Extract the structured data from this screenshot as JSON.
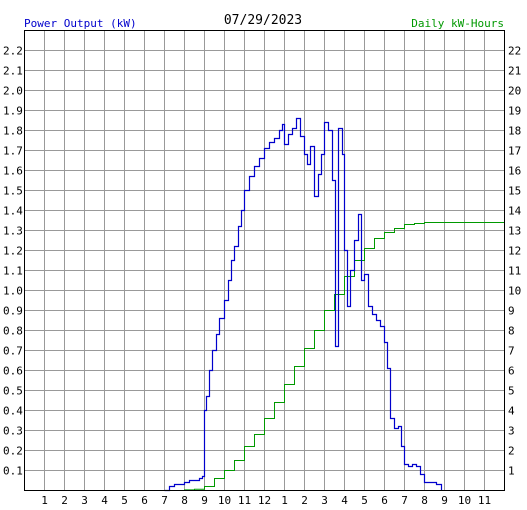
{
  "chart_data": {
    "type": "line",
    "date_label": "07/29/2023",
    "left_axis_label": "Power Output (kW)",
    "right_axis_label": "Daily kW-Hours",
    "x_ticks": [
      "1",
      "2",
      "3",
      "4",
      "5",
      "6",
      "7",
      "8",
      "9",
      "10",
      "11",
      "12",
      "1",
      "2",
      "3",
      "4",
      "5",
      "6",
      "7",
      "8",
      "9",
      "10",
      "11"
    ],
    "left_ticks": [
      "0.1",
      "0.2",
      "0.3",
      "0.4",
      "0.5",
      "0.6",
      "0.7",
      "0.8",
      "0.9",
      "1.0",
      "1.1",
      "1.2",
      "1.3",
      "1.4",
      "1.5",
      "1.6",
      "1.7",
      "1.8",
      "1.9",
      "2.0",
      "2.1",
      "2.2"
    ],
    "right_ticks": [
      "1",
      "2",
      "3",
      "4",
      "5",
      "6",
      "7",
      "8",
      "9",
      "10",
      "11",
      "12",
      "13",
      "14",
      "15",
      "16",
      "17",
      "18",
      "19",
      "20",
      "21",
      "22"
    ],
    "x_range_hours": [
      0,
      24
    ],
    "left_range_kw": [
      0,
      2.3
    ],
    "right_range_kwh": [
      0,
      23
    ],
    "grid": true,
    "colors": {
      "power": "#0000cc",
      "energy": "#009900",
      "left_label": "#0000cc",
      "right_label": "#009900",
      "grid": "#999999",
      "frame": "#000000"
    },
    "series": [
      {
        "name": "Power Output (kW)",
        "points": [
          [
            7.0,
            0.0
          ],
          [
            7.25,
            0.02
          ],
          [
            7.5,
            0.03
          ],
          [
            7.75,
            0.03
          ],
          [
            8.0,
            0.04
          ],
          [
            8.25,
            0.05
          ],
          [
            8.5,
            0.05
          ],
          [
            8.75,
            0.06
          ],
          [
            8.9,
            0.07
          ],
          [
            9.0,
            0.4
          ],
          [
            9.1,
            0.47
          ],
          [
            9.25,
            0.6
          ],
          [
            9.4,
            0.7
          ],
          [
            9.6,
            0.78
          ],
          [
            9.75,
            0.86
          ],
          [
            10.0,
            0.95
          ],
          [
            10.2,
            1.05
          ],
          [
            10.35,
            1.15
          ],
          [
            10.5,
            1.22
          ],
          [
            10.7,
            1.32
          ],
          [
            10.85,
            1.4
          ],
          [
            11.0,
            1.5
          ],
          [
            11.25,
            1.57
          ],
          [
            11.5,
            1.62
          ],
          [
            11.75,
            1.66
          ],
          [
            12.0,
            1.71
          ],
          [
            12.25,
            1.74
          ],
          [
            12.5,
            1.76
          ],
          [
            12.75,
            1.8
          ],
          [
            12.9,
            1.83
          ],
          [
            13.0,
            1.73
          ],
          [
            13.2,
            1.78
          ],
          [
            13.4,
            1.81
          ],
          [
            13.6,
            1.86
          ],
          [
            13.8,
            1.77
          ],
          [
            14.0,
            1.68
          ],
          [
            14.15,
            1.63
          ],
          [
            14.3,
            1.72
          ],
          [
            14.5,
            1.47
          ],
          [
            14.7,
            1.58
          ],
          [
            14.85,
            1.68
          ],
          [
            15.0,
            1.84
          ],
          [
            15.2,
            1.8
          ],
          [
            15.4,
            1.55
          ],
          [
            15.55,
            0.72
          ],
          [
            15.7,
            1.81
          ],
          [
            15.9,
            1.68
          ],
          [
            16.0,
            1.2
          ],
          [
            16.15,
            0.92
          ],
          [
            16.3,
            1.1
          ],
          [
            16.5,
            1.25
          ],
          [
            16.7,
            1.38
          ],
          [
            16.85,
            1.05
          ],
          [
            17.0,
            1.08
          ],
          [
            17.2,
            0.92
          ],
          [
            17.4,
            0.88
          ],
          [
            17.6,
            0.85
          ],
          [
            17.8,
            0.82
          ],
          [
            18.0,
            0.74
          ],
          [
            18.15,
            0.61
          ],
          [
            18.3,
            0.36
          ],
          [
            18.5,
            0.31
          ],
          [
            18.7,
            0.32
          ],
          [
            18.85,
            0.22
          ],
          [
            19.0,
            0.13
          ],
          [
            19.2,
            0.12
          ],
          [
            19.4,
            0.13
          ],
          [
            19.6,
            0.12
          ],
          [
            19.8,
            0.08
          ],
          [
            20.0,
            0.04
          ],
          [
            20.2,
            0.04
          ],
          [
            20.4,
            0.04
          ],
          [
            20.6,
            0.03
          ],
          [
            20.85,
            0.0
          ]
        ]
      },
      {
        "name": "Daily kW-Hours",
        "points": [
          [
            7.0,
            0.0
          ],
          [
            8.0,
            0.03
          ],
          [
            8.5,
            0.06
          ],
          [
            9.0,
            0.2
          ],
          [
            9.5,
            0.6
          ],
          [
            10.0,
            1.0
          ],
          [
            10.5,
            1.5
          ],
          [
            11.0,
            2.2
          ],
          [
            11.5,
            2.8
          ],
          [
            12.0,
            3.6
          ],
          [
            12.5,
            4.4
          ],
          [
            13.0,
            5.3
          ],
          [
            13.5,
            6.2
          ],
          [
            14.0,
            7.1
          ],
          [
            14.5,
            8.0
          ],
          [
            15.0,
            9.0
          ],
          [
            15.5,
            9.8
          ],
          [
            16.0,
            10.7
          ],
          [
            16.5,
            11.5
          ],
          [
            17.0,
            12.1
          ],
          [
            17.5,
            12.6
          ],
          [
            18.0,
            12.9
          ],
          [
            18.5,
            13.1
          ],
          [
            19.0,
            13.3
          ],
          [
            19.5,
            13.35
          ],
          [
            20.0,
            13.4
          ],
          [
            24.0,
            13.4
          ]
        ]
      }
    ]
  }
}
